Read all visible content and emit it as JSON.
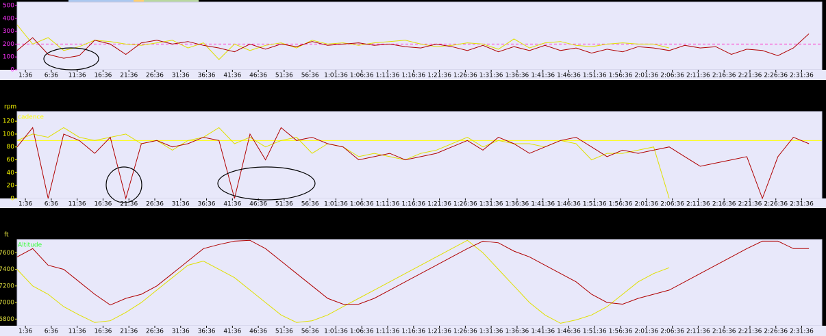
{
  "chart_data": [
    {
      "type": "line",
      "tick_color": "#ff33ff",
      "x": [
        0,
        3,
        6,
        9,
        12,
        15,
        18,
        21,
        24,
        27,
        30,
        33,
        36,
        39,
        42,
        45,
        48,
        51,
        54,
        57,
        60,
        63,
        66,
        69,
        72,
        75,
        78,
        81,
        84,
        87,
        90,
        93,
        96,
        99,
        102,
        105,
        108,
        111,
        114,
        117,
        120,
        123,
        126,
        129,
        132,
        135,
        138,
        141,
        144,
        147,
        150,
        153
      ],
      "xlim": [
        0,
        155.5
      ],
      "ylim": [
        0,
        527
      ],
      "yticks": [
        0,
        100,
        200,
        300,
        400,
        500
      ],
      "hline": {
        "value": 200,
        "color": "#ff33cc",
        "dashed": true
      },
      "xticks": [
        {
          "value": 1.6,
          "label": "1:36"
        },
        {
          "value": 6.6,
          "label": "6:36"
        },
        {
          "value": 11.6,
          "label": "11:36"
        },
        {
          "value": 16.6,
          "label": "16:36"
        },
        {
          "value": 21.6,
          "label": "21:36"
        },
        {
          "value": 26.6,
          "label": "26:36"
        },
        {
          "value": 31.6,
          "label": "31:36"
        },
        {
          "value": 36.6,
          "label": "36:36"
        },
        {
          "value": 41.6,
          "label": "41:36"
        },
        {
          "value": 46.6,
          "label": "46:36"
        },
        {
          "value": 51.6,
          "label": "51:36"
        },
        {
          "value": 56.6,
          "label": "56:36"
        },
        {
          "value": 61.6,
          "label": "1:01:36"
        },
        {
          "value": 66.6,
          "label": "1:06:36"
        },
        {
          "value": 71.6,
          "label": "1:11:36"
        },
        {
          "value": 76.6,
          "label": "1:16:36"
        },
        {
          "value": 81.6,
          "label": "1:21:36"
        },
        {
          "value": 86.6,
          "label": "1:26:36"
        },
        {
          "value": 91.6,
          "label": "1:31:36"
        },
        {
          "value": 96.6,
          "label": "1:36:36"
        },
        {
          "value": 101.6,
          "label": "1:41:36"
        },
        {
          "value": 106.6,
          "label": "1:46:36"
        },
        {
          "value": 111.6,
          "label": "1:51:36"
        },
        {
          "value": 116.6,
          "label": "1:56:36"
        },
        {
          "value": 121.6,
          "label": "2:01:36"
        },
        {
          "value": 126.6,
          "label": "2:06:36"
        },
        {
          "value": 131.6,
          "label": "2:11:36"
        },
        {
          "value": 136.6,
          "label": "2:16:36"
        },
        {
          "value": 141.6,
          "label": "2:21:36"
        },
        {
          "value": 146.6,
          "label": "2:26:36"
        },
        {
          "value": 151.6,
          "label": "2:31:36"
        }
      ],
      "series": [
        {
          "color": "#e0e000",
          "values": [
            350,
            200,
            250,
            150,
            180,
            230,
            220,
            200,
            190,
            210,
            230,
            170,
            210,
            80,
            200,
            150,
            190,
            210,
            170,
            230,
            200,
            210,
            190,
            210,
            220,
            230,
            200,
            180,
            190,
            210,
            200,
            160,
            240,
            170,
            210,
            220,
            190,
            180,
            200,
            210,
            200,
            200,
            170,
            null,
            null,
            null,
            null,
            null,
            null,
            null,
            null,
            null
          ]
        },
        {
          "color": "#b00000",
          "values": [
            150,
            250,
            120,
            90,
            110,
            230,
            200,
            120,
            210,
            230,
            200,
            220,
            190,
            170,
            140,
            200,
            160,
            200,
            180,
            220,
            190,
            200,
            210,
            190,
            200,
            180,
            170,
            200,
            180,
            150,
            190,
            140,
            180,
            150,
            190,
            150,
            170,
            130,
            160,
            140,
            180,
            170,
            150,
            190,
            170,
            180,
            120,
            160,
            150,
            110,
            170,
            280
          ]
        }
      ]
    },
    {
      "type": "line",
      "tick_color": "#ffff00",
      "unit_label": "rpm",
      "caption": "cadence",
      "caption_color": "#ffff00",
      "x": [
        0,
        3,
        6,
        9,
        12,
        15,
        18,
        21,
        24,
        27,
        30,
        33,
        36,
        39,
        42,
        45,
        48,
        51,
        54,
        57,
        60,
        63,
        66,
        69,
        72,
        75,
        78,
        81,
        84,
        87,
        90,
        93,
        96,
        99,
        102,
        105,
        108,
        111,
        114,
        117,
        120,
        123,
        126,
        129,
        132,
        135,
        138,
        141,
        144,
        147,
        150,
        153
      ],
      "xlim": [
        0,
        155.5
      ],
      "ylim": [
        0,
        135
      ],
      "yticks": [
        0,
        20,
        40,
        60,
        80,
        100,
        120
      ],
      "hline": {
        "value": 90,
        "color": "#ffff00",
        "dashed": false
      },
      "xticks": [
        {
          "value": 1.6,
          "label": "1:36"
        },
        {
          "value": 6.6,
          "label": "6:36"
        },
        {
          "value": 11.6,
          "label": "11:36"
        },
        {
          "value": 16.6,
          "label": "16:36"
        },
        {
          "value": 21.6,
          "label": "21:36"
        },
        {
          "value": 26.6,
          "label": "26:36"
        },
        {
          "value": 31.6,
          "label": "31:36"
        },
        {
          "value": 36.6,
          "label": "36:36"
        },
        {
          "value": 41.6,
          "label": "41:36"
        },
        {
          "value": 46.6,
          "label": "46:36"
        },
        {
          "value": 51.6,
          "label": "51:36"
        },
        {
          "value": 56.6,
          "label": "56:36"
        },
        {
          "value": 61.6,
          "label": "1:01:36"
        },
        {
          "value": 66.6,
          "label": "1:06:36"
        },
        {
          "value": 71.6,
          "label": "1:11:36"
        },
        {
          "value": 76.6,
          "label": "1:16:36"
        },
        {
          "value": 81.6,
          "label": "1:21:36"
        },
        {
          "value": 86.6,
          "label": "1:26:36"
        },
        {
          "value": 91.6,
          "label": "1:31:36"
        },
        {
          "value": 96.6,
          "label": "1:36:36"
        },
        {
          "value": 101.6,
          "label": "1:41:36"
        },
        {
          "value": 106.6,
          "label": "1:46:36"
        },
        {
          "value": 111.6,
          "label": "1:51:36"
        },
        {
          "value": 116.6,
          "label": "1:56:36"
        },
        {
          "value": 121.6,
          "label": "2:01:36"
        },
        {
          "value": 126.6,
          "label": "2:06:36"
        },
        {
          "value": 131.6,
          "label": "2:11:36"
        },
        {
          "value": 136.6,
          "label": "2:16:36"
        },
        {
          "value": 141.6,
          "label": "2:21:36"
        },
        {
          "value": 146.6,
          "label": "2:26:36"
        },
        {
          "value": 151.6,
          "label": "2:31:36"
        }
      ],
      "series": [
        {
          "color": "#e0e000",
          "values": [
            90,
            100,
            95,
            110,
            95,
            90,
            95,
            100,
            85,
            90,
            75,
            90,
            95,
            110,
            85,
            95,
            80,
            90,
            95,
            70,
            85,
            80,
            65,
            70,
            65,
            60,
            70,
            75,
            85,
            95,
            80,
            90,
            85,
            85,
            80,
            90,
            85,
            60,
            70,
            70,
            75,
            80,
            0,
            null,
            null,
            null,
            null,
            null,
            null,
            null,
            null,
            null
          ]
        },
        {
          "color": "#b00000",
          "values": [
            80,
            110,
            0,
            100,
            90,
            70,
            95,
            0,
            85,
            90,
            80,
            85,
            95,
            90,
            0,
            100,
            60,
            110,
            90,
            95,
            85,
            80,
            60,
            65,
            70,
            60,
            65,
            70,
            80,
            90,
            75,
            95,
            85,
            70,
            80,
            90,
            95,
            80,
            65,
            75,
            70,
            75,
            80,
            65,
            50,
            55,
            60,
            65,
            0,
            65,
            95,
            85
          ]
        }
      ]
    },
    {
      "type": "line",
      "tick_color": "#e0e040",
      "unit_label": "ft",
      "caption": "Altitude",
      "caption_color": "#33ff33",
      "x": [
        0,
        3,
        6,
        9,
        12,
        15,
        18,
        21,
        24,
        27,
        30,
        33,
        36,
        39,
        42,
        45,
        48,
        51,
        54,
        57,
        60,
        63,
        66,
        69,
        72,
        75,
        78,
        81,
        84,
        87,
        90,
        93,
        96,
        99,
        102,
        105,
        108,
        111,
        114,
        117,
        120,
        123,
        126,
        129,
        132,
        135,
        138,
        141,
        144,
        147,
        150,
        153
      ],
      "xlim": [
        0,
        155.5
      ],
      "ylim": [
        6720,
        7760
      ],
      "yticks": [
        6800,
        7000,
        7200,
        7400,
        7600
      ],
      "xticks": [
        {
          "value": 1.6,
          "label": "1:36"
        },
        {
          "value": 6.6,
          "label": "6:36"
        },
        {
          "value": 11.6,
          "label": "11:36"
        },
        {
          "value": 16.6,
          "label": "16:36"
        },
        {
          "value": 21.6,
          "label": "21:36"
        },
        {
          "value": 26.6,
          "label": "26:36"
        },
        {
          "value": 31.6,
          "label": "31:36"
        },
        {
          "value": 36.6,
          "label": "36:36"
        },
        {
          "value": 41.6,
          "label": "41:36"
        },
        {
          "value": 46.6,
          "label": "46:36"
        },
        {
          "value": 51.6,
          "label": "51:36"
        },
        {
          "value": 56.6,
          "label": "56:36"
        },
        {
          "value": 61.6,
          "label": "1:01:36"
        },
        {
          "value": 66.6,
          "label": "1:06:36"
        },
        {
          "value": 71.6,
          "label": "1:11:36"
        },
        {
          "value": 76.6,
          "label": "1:16:36"
        },
        {
          "value": 81.6,
          "label": "1:21:36"
        },
        {
          "value": 86.6,
          "label": "1:26:36"
        },
        {
          "value": 91.6,
          "label": "1:31:36"
        },
        {
          "value": 96.6,
          "label": "1:36:36"
        },
        {
          "value": 101.6,
          "label": "1:41:36"
        },
        {
          "value": 106.6,
          "label": "1:46:36"
        },
        {
          "value": 111.6,
          "label": "1:51:36"
        },
        {
          "value": 116.6,
          "label": "1:56:36"
        },
        {
          "value": 121.6,
          "label": "2:01:36"
        },
        {
          "value": 126.6,
          "label": "2:06:36"
        },
        {
          "value": 131.6,
          "label": "2:11:36"
        },
        {
          "value": 136.6,
          "label": "2:16:36"
        },
        {
          "value": 141.6,
          "label": "2:21:36"
        },
        {
          "value": 146.6,
          "label": "2:26:36"
        },
        {
          "value": 151.6,
          "label": "2:31:36"
        }
      ],
      "series": [
        {
          "color": "#e0e000",
          "values": [
            7400,
            7200,
            7100,
            6950,
            6850,
            6760,
            6780,
            6880,
            7000,
            7150,
            7300,
            7450,
            7500,
            7400,
            7300,
            7150,
            7000,
            6850,
            6760,
            6780,
            6850,
            6950,
            7050,
            7150,
            7250,
            7350,
            7450,
            7550,
            7650,
            7750,
            7600,
            7400,
            7200,
            7000,
            6850,
            6750,
            6790,
            6850,
            6950,
            7100,
            7250,
            7350,
            7420,
            null,
            null,
            null,
            null,
            null,
            null,
            null,
            null,
            null
          ]
        },
        {
          "color": "#b00000",
          "values": [
            7550,
            7650,
            7450,
            7400,
            7250,
            7100,
            6970,
            7050,
            7100,
            7200,
            7350,
            7500,
            7650,
            7700,
            7740,
            7750,
            7650,
            7500,
            7350,
            7200,
            7050,
            6980,
            6980,
            7050,
            7150,
            7250,
            7350,
            7450,
            7550,
            7650,
            7740,
            7720,
            7620,
            7550,
            7450,
            7350,
            7250,
            7100,
            7000,
            6980,
            7050,
            7100,
            7150,
            7250,
            7350,
            7450,
            7550,
            7650,
            7740,
            7740,
            7650,
            7650
          ]
        }
      ]
    }
  ]
}
